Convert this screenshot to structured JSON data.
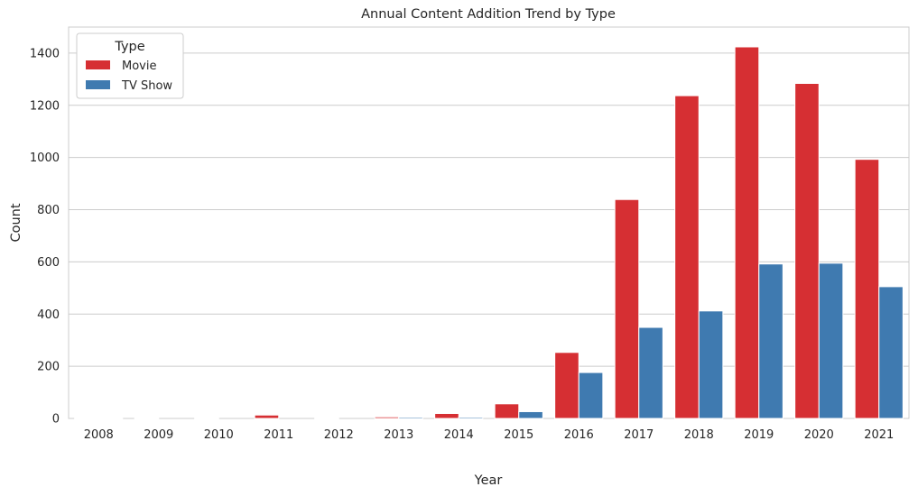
{
  "chart_data": {
    "type": "bar",
    "title": "Annual Content Addition Trend by Type",
    "xlabel": "Year",
    "ylabel": "Count",
    "categories": [
      "2008",
      "2009",
      "2010",
      "2011",
      "2012",
      "2013",
      "2014",
      "2015",
      "2016",
      "2017",
      "2018",
      "2019",
      "2020",
      "2021"
    ],
    "series": [
      {
        "name": "Movie",
        "color": "#d62f33",
        "values": [
          1,
          1,
          1,
          13,
          3,
          6,
          19,
          56,
          253,
          839,
          1237,
          1424,
          1284,
          993
        ]
      },
      {
        "name": "TV Show",
        "color": "#3f7ab0",
        "values": [
          1,
          0,
          0,
          0,
          0,
          5,
          5,
          26,
          176,
          349,
          412,
          592,
          595,
          505
        ]
      }
    ],
    "ylim": [
      0,
      1500
    ],
    "yticks": [
      0,
      200,
      400,
      600,
      800,
      1000,
      1200,
      1400
    ],
    "grid": true,
    "legend": {
      "title": "Type",
      "placement": "upper-left"
    }
  }
}
